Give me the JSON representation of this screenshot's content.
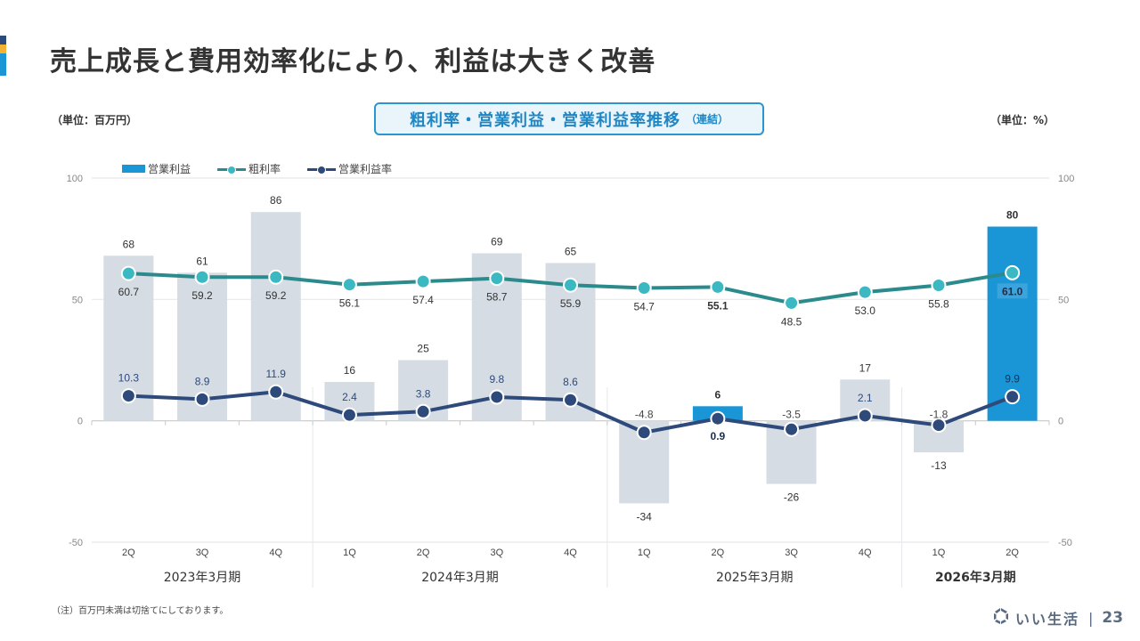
{
  "slide": {
    "title": "売上成長と費用効率化により、利益は大きく改善",
    "unit_left": "（単位：百万円）",
    "unit_right": "（単位：%）",
    "chart_title_main": "粗利率・営業利益・営業利益率推移",
    "chart_title_sub": "（連結）",
    "note": "（注）百万円未満は切捨てにしております。",
    "logo_text": "いい生活",
    "separator": "|",
    "page_number": "23",
    "colors": {
      "accent_navy": "#2e4a7a",
      "accent_yellow": "#f2b233",
      "accent_blue": "#1a95d6",
      "bar_gray": "#d5dce3",
      "bar_highlight": "#1a95d6",
      "gross_margin_line": "#2a8a8c",
      "gross_margin_marker": "#3bb8c2",
      "op_margin_line": "#2e4a7a"
    }
  },
  "legend": [
    {
      "label": "営業利益",
      "type": "bar"
    },
    {
      "label": "粗利率",
      "type": "line"
    },
    {
      "label": "営業利益率",
      "type": "line"
    }
  ],
  "chart_data": {
    "type": "bar",
    "title": "粗利率・営業利益・営業利益率推移（連結）",
    "categories": [
      "2Q",
      "3Q",
      "4Q",
      "1Q",
      "2Q",
      "3Q",
      "4Q",
      "1Q",
      "2Q",
      "3Q",
      "4Q",
      "1Q",
      "2Q"
    ],
    "groups": [
      {
        "label": "2023年3月期",
        "span": 3,
        "bold": false
      },
      {
        "label": "2024年3月期",
        "span": 4,
        "bold": false
      },
      {
        "label": "2025年3月期",
        "span": 4,
        "bold": false
      },
      {
        "label": "2026年3月期",
        "span": 2,
        "bold": true
      }
    ],
    "series": [
      {
        "name": "営業利益",
        "type": "bar",
        "axis": "left",
        "values": [
          68,
          61,
          86,
          16,
          25,
          69,
          65,
          -34,
          6,
          -26,
          17,
          -13,
          80
        ],
        "highlight": [
          false,
          false,
          false,
          false,
          false,
          false,
          false,
          false,
          true,
          false,
          false,
          false,
          true
        ]
      },
      {
        "name": "粗利率",
        "type": "line",
        "axis": "right",
        "values": [
          60.7,
          59.2,
          59.2,
          56.1,
          57.4,
          58.7,
          55.9,
          54.7,
          55.1,
          48.5,
          53.0,
          55.8,
          61.0
        ],
        "labels": [
          "60.7",
          "59.2",
          "59.2",
          "56.1",
          "57.4",
          "58.7",
          "55.9",
          "54.7",
          "55.1",
          "48.5",
          "53.0",
          "55.8",
          "61.0"
        ]
      },
      {
        "name": "営業利益率",
        "type": "line",
        "axis": "right",
        "values": [
          10.3,
          8.9,
          11.9,
          2.4,
          3.8,
          9.8,
          8.6,
          -4.8,
          0.9,
          -3.5,
          2.1,
          -1.8,
          9.9
        ],
        "labels": [
          "10.3",
          "8.9",
          "11.9",
          "2.4",
          "3.8",
          "9.8",
          "8.6",
          "-4.8",
          "0.9",
          "-3.5",
          "2.1",
          "-1.8",
          "9.9"
        ]
      }
    ],
    "ylim_left": [
      -50,
      100
    ],
    "ylim_right": [
      -50,
      100
    ],
    "yticks_left": [
      -50,
      0,
      50,
      100
    ],
    "yticks_right": [
      -50,
      0,
      50,
      100
    ],
    "ylabel_left": "（単位：百万円）",
    "ylabel_right": "（単位：%）",
    "grid": true,
    "legend_position": "top-left"
  }
}
